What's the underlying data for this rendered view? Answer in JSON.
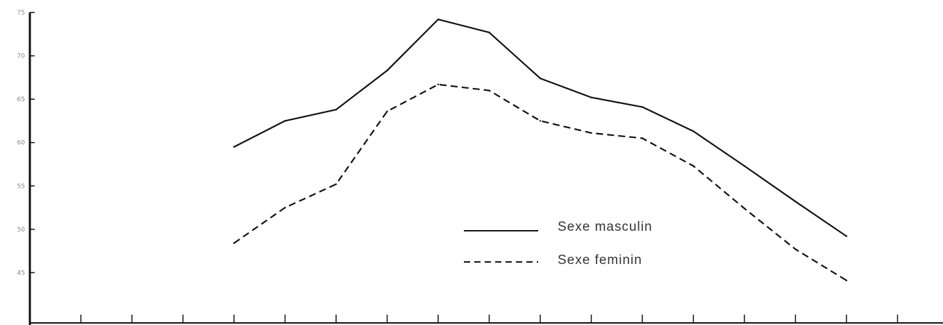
{
  "chart_data": {
    "type": "line",
    "title": "",
    "xlabel": "",
    "ylabel": "",
    "ylim": [
      40,
      75
    ],
    "y_tick_labels": [
      "75",
      "70",
      "65",
      "60",
      "55",
      "50",
      "45"
    ],
    "x_points": 13,
    "x_range": [
      0,
      17
    ],
    "grid": false,
    "legend_position": "center-right",
    "series": [
      {
        "name": "Sexe masculin",
        "style": "solid",
        "color": "#111111",
        "x": [
          4,
          5,
          6,
          7,
          8,
          9,
          10,
          11,
          12,
          13,
          14,
          15,
          16
        ],
        "values": [
          59.5,
          62.5,
          63.8,
          68.3,
          74.2,
          72.7,
          67.4,
          65.2,
          64.1,
          61.3,
          57.3,
          53.2,
          49.2
        ]
      },
      {
        "name": "Sexe feminin",
        "style": "dashed",
        "color": "#111111",
        "x": [
          4,
          5,
          6,
          7,
          8,
          9,
          10,
          11,
          12,
          13,
          14,
          15,
          16
        ],
        "values": [
          48.4,
          52.5,
          55.2,
          63.6,
          66.7,
          66.0,
          62.5,
          61.1,
          60.5,
          57.3,
          52.4,
          47.7,
          44.1
        ]
      }
    ]
  }
}
